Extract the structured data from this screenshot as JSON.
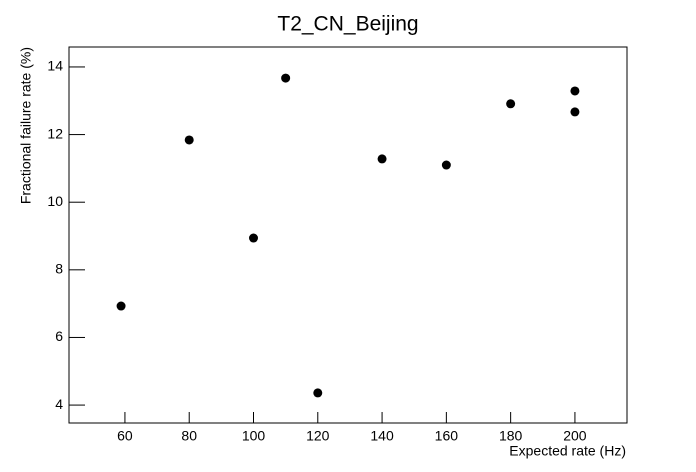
{
  "chart_data": {
    "type": "scatter",
    "title": "T2_CN_Beijing",
    "x_label": "Expected rate (Hz)",
    "y_label": "Fractional failure rate (%)",
    "x": [
      58.8,
      80,
      100,
      110,
      120,
      140,
      160,
      180,
      200,
      200
    ],
    "values": [
      6.93,
      11.84,
      8.94,
      13.67,
      4.36,
      11.28,
      11.1,
      12.91,
      13.29,
      12.67
    ],
    "color": "#000000",
    "xlim": [
      42.6,
      216.2
    ],
    "xticks": [
      60,
      80,
      100,
      120,
      140,
      160,
      180,
      200
    ],
    "ylim": [
      3.47,
      14.59
    ],
    "yticks": [
      4,
      6,
      8,
      10,
      12,
      14
    ]
  }
}
